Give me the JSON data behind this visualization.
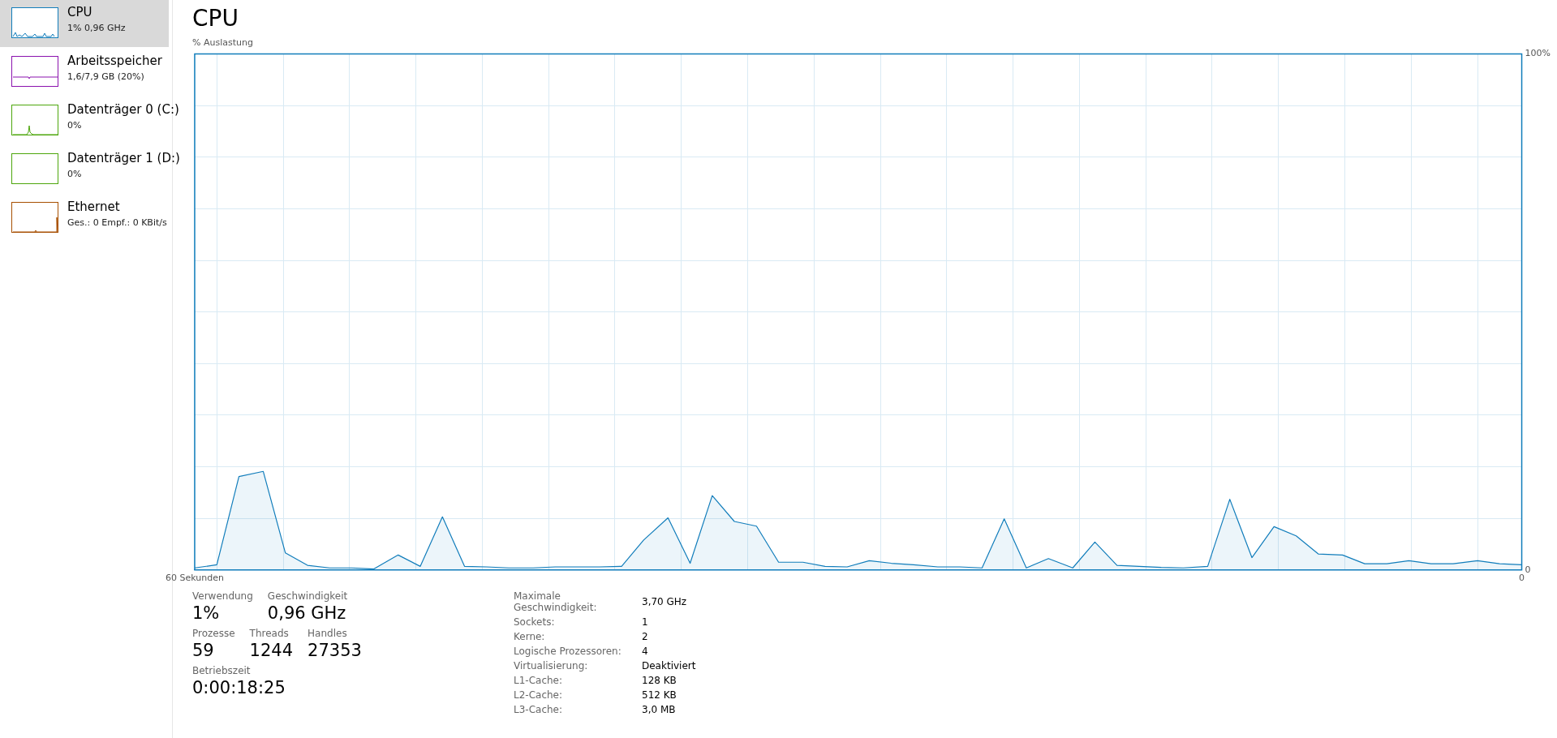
{
  "chart_data": [
    {
      "type": "other",
      "annotations": [
        "CPU",
        "1% 0,96 GHz",
        "Arbeitsspeicher",
        "1,6/7,9 GB (20%)",
        "Datenträger 0 (C:)",
        "0%",
        "Datenträger 1 (D:)",
        "0%",
        "Ethernet",
        "Ges.: 0 Empf.: 0 KBit/s"
      ]
    },
    {
      "type": "area",
      "title": "CPU",
      "ylabel": "% Auslastung",
      "grid": true,
      "legend": false,
      "marker": "none",
      "x": [
        60.0,
        59.0,
        58.0,
        56.9,
        55.9,
        54.9,
        53.9,
        52.9,
        51.9,
        50.8,
        49.8,
        48.8,
        47.8,
        46.8,
        45.8,
        44.7,
        43.7,
        42.7,
        41.7,
        40.7,
        39.7,
        38.6,
        37.6,
        36.6,
        35.6,
        34.6,
        33.6,
        32.5,
        31.5,
        30.5,
        29.5,
        28.5,
        27.5,
        26.4,
        25.4,
        24.4,
        23.4,
        22.4,
        21.4,
        20.3,
        19.3,
        18.3,
        17.3,
        16.3,
        15.3,
        14.2,
        13.2,
        12.2,
        11.2,
        10.2,
        9.2,
        8.1,
        7.1,
        6.1,
        5.1,
        4.1,
        3.1,
        2.0,
        1.0,
        0.0
      ],
      "series": [
        {
          "color": "#117dbb",
          "values": [
            0.4,
            1.0,
            18.1,
            19.1,
            3.3,
            0.9,
            0.4,
            0.4,
            0.2,
            2.9,
            0.7,
            10.3,
            0.7,
            0.6,
            0.4,
            0.4,
            0.6,
            0.6,
            0.6,
            0.7,
            5.8,
            10.1,
            1.3,
            14.4,
            9.4,
            8.5,
            1.5,
            1.5,
            0.7,
            0.6,
            1.8,
            1.3,
            1.0,
            0.6,
            0.6,
            0.4,
            9.9,
            0.4,
            2.2,
            0.4,
            5.4,
            0.9,
            0.7,
            0.5,
            0.4,
            0.7,
            13.7,
            2.4,
            8.4,
            6.6,
            3.1,
            2.9,
            1.2,
            1.2,
            1.8,
            1.2,
            1.2,
            1.8,
            1.2,
            1.0
          ]
        }
      ],
      "xlim": [
        60,
        0
      ],
      "xticks": [
        {
          "value": 60,
          "label": "60 Sekunden"
        },
        {
          "value": 59,
          "label": null
        },
        {
          "value": 56,
          "label": null
        },
        {
          "value": 53,
          "label": null
        },
        {
          "value": 50,
          "label": null
        },
        {
          "value": 47,
          "label": null
        },
        {
          "value": 44,
          "label": null
        },
        {
          "value": 41,
          "label": null
        },
        {
          "value": 38,
          "label": null
        },
        {
          "value": 35,
          "label": null
        },
        {
          "value": 32,
          "label": null
        },
        {
          "value": 29,
          "label": null
        },
        {
          "value": 26,
          "label": null
        },
        {
          "value": 23,
          "label": null
        },
        {
          "value": 20,
          "label": null
        },
        {
          "value": 17,
          "label": null
        },
        {
          "value": 14,
          "label": null
        },
        {
          "value": 11,
          "label": null
        },
        {
          "value": 8,
          "label": null
        },
        {
          "value": 5,
          "label": null
        },
        {
          "value": 2,
          "label": null
        },
        {
          "value": 0,
          "label": "0"
        }
      ],
      "ylim": [
        0,
        100
      ],
      "yticks": [
        {
          "value": 0,
          "label": "0"
        },
        {
          "value": 10,
          "label": null
        },
        {
          "value": 20,
          "label": null
        },
        {
          "value": 30,
          "label": null
        },
        {
          "value": 40,
          "label": null
        },
        {
          "value": 50,
          "label": null
        },
        {
          "value": 60,
          "label": null
        },
        {
          "value": 70,
          "label": null
        },
        {
          "value": 80,
          "label": null
        },
        {
          "value": 90,
          "label": null
        },
        {
          "value": 100,
          "label": "100%"
        }
      ],
      "annotations": [
        "Verwendung",
        "1%",
        "Geschwindigkeit",
        "0,96 GHz",
        "Prozesse",
        "59",
        "Threads",
        "1244",
        "Handles",
        "27353",
        "Betriebszeit",
        "0:00:18:25",
        "Maximale Geschwindigkeit:",
        "3,70 GHz",
        "Sockets:",
        "1",
        "Kerne:",
        "2",
        "Logische Prozessoren:",
        "4",
        "Virtualisierung:",
        "Deaktiviert",
        "L1-Cache:",
        "128 KB",
        "L2-Cache:",
        "512 KB",
        "L3-Cache:",
        "3,0 MB"
      ]
    }
  ]
}
